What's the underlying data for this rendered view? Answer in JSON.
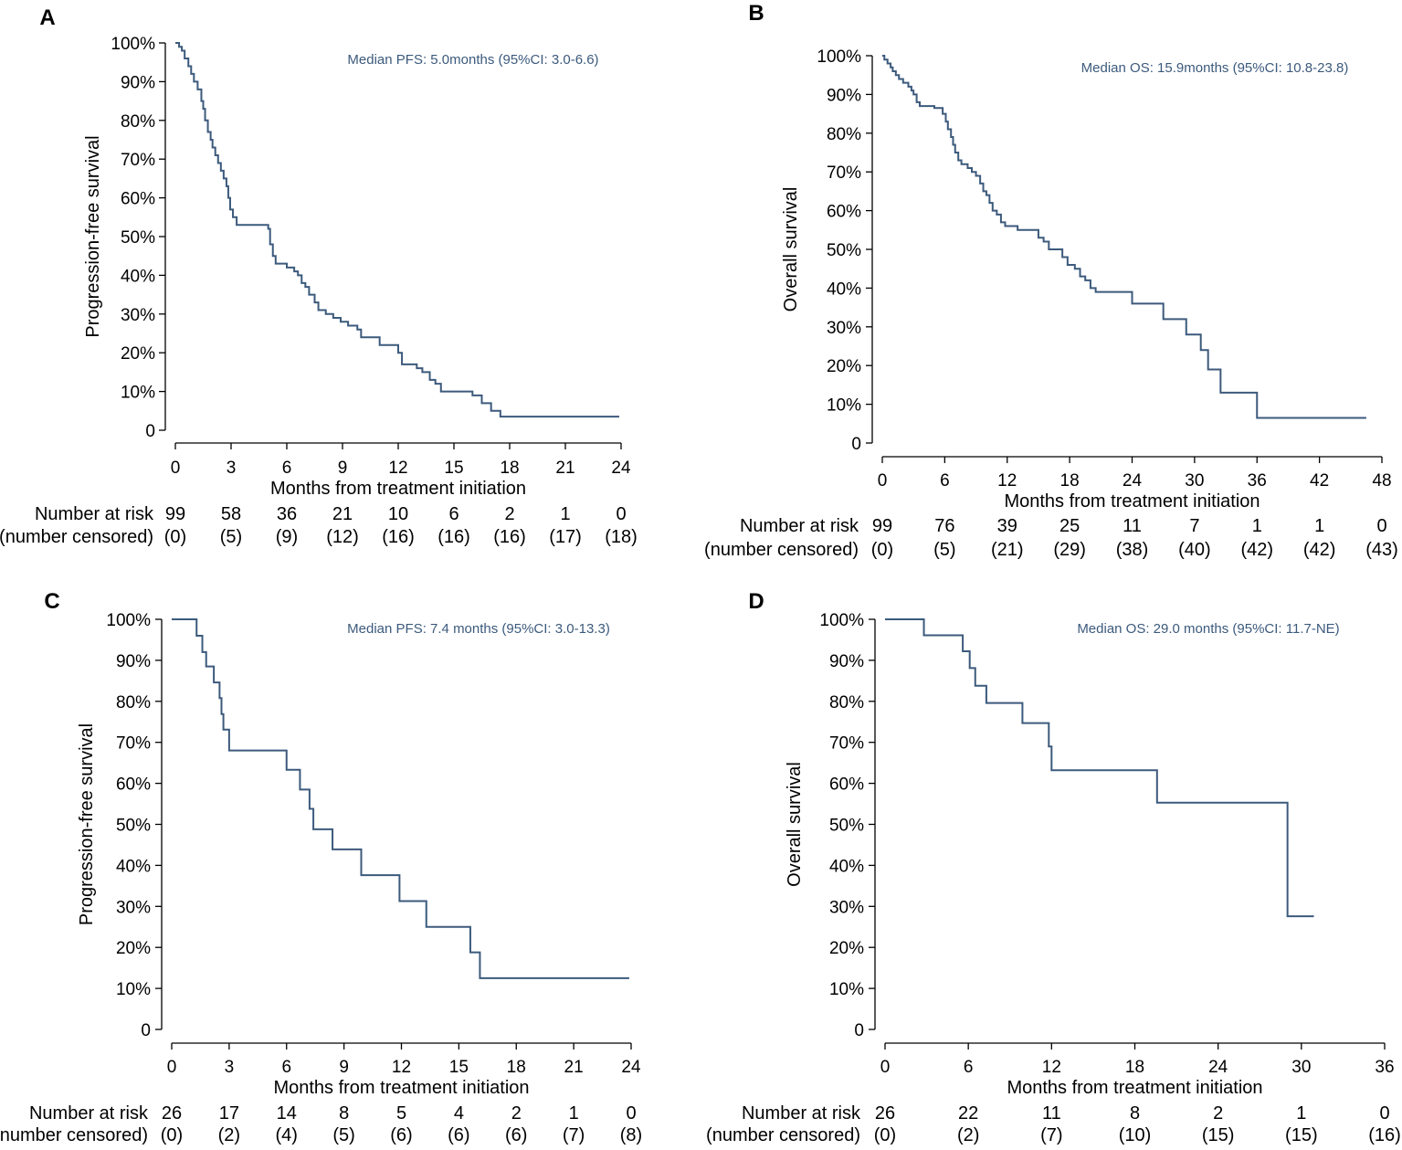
{
  "figure": {
    "colors": {
      "curve": "#3c5a7c",
      "axis": "#000000",
      "annotation": "#3c5a7c",
      "background": "#ffffff"
    },
    "risk_header": "Number at risk",
    "censored_header": "(number censored)"
  },
  "chart_data": [
    {
      "panel": "A",
      "type": "line",
      "title": "",
      "xlabel": "Months from treatment initiation",
      "ylabel": "Progression-free survival",
      "annotation": "Median PFS: 5.0months (95%CI: 3.0-6.6)",
      "xlim": [
        0,
        24
      ],
      "ylim": [
        0,
        100
      ],
      "xticks": [
        0,
        3,
        6,
        9,
        12,
        15,
        18,
        21,
        24
      ],
      "yticks": [
        0,
        10,
        20,
        30,
        40,
        50,
        60,
        70,
        80,
        90,
        100
      ],
      "ytick_labels": [
        "0",
        "10%",
        "20%",
        "30%",
        "40%",
        "50%",
        "60%",
        "70%",
        "80%",
        "90%",
        "100%"
      ],
      "series": [
        {
          "name": "PFS",
          "step_points": [
            [
              0,
              100
            ],
            [
              0.2,
              99
            ],
            [
              0.35,
              98
            ],
            [
              0.5,
              96
            ],
            [
              0.7,
              94
            ],
            [
              0.85,
              92
            ],
            [
              1.0,
              90
            ],
            [
              1.2,
              88
            ],
            [
              1.4,
              85
            ],
            [
              1.5,
              83
            ],
            [
              1.6,
              80
            ],
            [
              1.75,
              77
            ],
            [
              1.9,
              75
            ],
            [
              2.0,
              73
            ],
            [
              2.15,
              71
            ],
            [
              2.3,
              69
            ],
            [
              2.45,
              67
            ],
            [
              2.6,
              65
            ],
            [
              2.75,
              63
            ],
            [
              2.85,
              60
            ],
            [
              2.95,
              57
            ],
            [
              3.1,
              55
            ],
            [
              3.3,
              53
            ],
            [
              5.0,
              52
            ],
            [
              5.1,
              48
            ],
            [
              5.25,
              45
            ],
            [
              5.4,
              43
            ],
            [
              6.0,
              42
            ],
            [
              6.4,
              41
            ],
            [
              6.6,
              40
            ],
            [
              6.8,
              38
            ],
            [
              7.0,
              37
            ],
            [
              7.2,
              35
            ],
            [
              7.5,
              33
            ],
            [
              7.7,
              31
            ],
            [
              8.1,
              30
            ],
            [
              8.5,
              29
            ],
            [
              8.9,
              28
            ],
            [
              9.3,
              27
            ],
            [
              9.8,
              26
            ],
            [
              10.0,
              24
            ],
            [
              11.0,
              22
            ],
            [
              12.0,
              20
            ],
            [
              12.2,
              17
            ],
            [
              13.0,
              16
            ],
            [
              13.3,
              15
            ],
            [
              13.7,
              13
            ],
            [
              14.0,
              12
            ],
            [
              14.3,
              10
            ],
            [
              16.0,
              9
            ],
            [
              16.5,
              7
            ],
            [
              17.0,
              5
            ],
            [
              17.5,
              3.5
            ],
            [
              23.9,
              3.5
            ]
          ]
        }
      ],
      "risk_table": {
        "at_risk": [
          "99",
          "58",
          "36",
          "21",
          "10",
          "6",
          "2",
          "1",
          "0"
        ],
        "censored": [
          "(0)",
          "(5)",
          "(9)",
          "(12)",
          "(16)",
          "(16)",
          "(16)",
          "(17)",
          "(18)"
        ]
      }
    },
    {
      "panel": "B",
      "type": "line",
      "title": "",
      "xlabel": "Months from treatment initiation",
      "ylabel": "Overall survival",
      "annotation": "Median OS: 15.9months (95%CI: 10.8-23.8)",
      "xlim": [
        0,
        48
      ],
      "ylim": [
        0,
        100
      ],
      "xticks": [
        0,
        6,
        12,
        18,
        24,
        30,
        36,
        42,
        48
      ],
      "yticks": [
        0,
        10,
        20,
        30,
        40,
        50,
        60,
        70,
        80,
        90,
        100
      ],
      "ytick_labels": [
        "0",
        "10%",
        "20%",
        "30%",
        "40%",
        "50%",
        "60%",
        "70%",
        "80%",
        "90%",
        "100%"
      ],
      "series": [
        {
          "name": "OS",
          "step_points": [
            [
              0,
              100
            ],
            [
              0.2,
              99
            ],
            [
              0.5,
              98
            ],
            [
              0.8,
              97
            ],
            [
              1.0,
              96
            ],
            [
              1.3,
              95
            ],
            [
              1.6,
              94
            ],
            [
              2.0,
              93
            ],
            [
              2.5,
              92
            ],
            [
              2.8,
              91
            ],
            [
              3.0,
              90
            ],
            [
              3.3,
              88
            ],
            [
              3.6,
              87
            ],
            [
              5.0,
              86.5
            ],
            [
              5.8,
              85
            ],
            [
              6.1,
              83
            ],
            [
              6.3,
              81
            ],
            [
              6.6,
              79
            ],
            [
              6.8,
              77
            ],
            [
              7.0,
              75
            ],
            [
              7.3,
              73
            ],
            [
              7.6,
              72
            ],
            [
              8.2,
              71
            ],
            [
              8.6,
              70
            ],
            [
              9.0,
              69
            ],
            [
              9.4,
              67
            ],
            [
              9.7,
              65
            ],
            [
              10.0,
              64
            ],
            [
              10.3,
              62
            ],
            [
              10.6,
              60
            ],
            [
              11.0,
              59
            ],
            [
              11.4,
              57
            ],
            [
              11.8,
              56
            ],
            [
              13.0,
              55
            ],
            [
              15.0,
              53
            ],
            [
              15.5,
              52
            ],
            [
              16.0,
              50
            ],
            [
              17.3,
              48
            ],
            [
              17.8,
              46
            ],
            [
              18.5,
              45
            ],
            [
              19.0,
              43
            ],
            [
              19.5,
              42
            ],
            [
              20.0,
              40
            ],
            [
              20.5,
              39
            ],
            [
              24.0,
              36
            ],
            [
              27.0,
              32
            ],
            [
              29.2,
              28
            ],
            [
              30.6,
              24
            ],
            [
              31.3,
              19
            ],
            [
              32.5,
              13
            ],
            [
              36.0,
              6.5
            ],
            [
              46.5,
              6.5
            ]
          ]
        }
      ],
      "risk_table": {
        "at_risk": [
          "99",
          "76",
          "39",
          "25",
          "11",
          "7",
          "1",
          "1",
          "0"
        ],
        "censored": [
          "(0)",
          "(5)",
          "(21)",
          "(29)",
          "(38)",
          "(40)",
          "(42)",
          "(42)",
          "(43)"
        ]
      }
    },
    {
      "panel": "C",
      "type": "line",
      "title": "",
      "xlabel": "Months from treatment initiation",
      "ylabel": "Progression-free survival",
      "annotation": "Median PFS: 7.4 months (95%CI: 3.0-13.3)",
      "xlim": [
        0,
        24
      ],
      "ylim": [
        0,
        100
      ],
      "xticks": [
        0,
        3,
        6,
        9,
        12,
        15,
        18,
        21,
        24
      ],
      "yticks": [
        0,
        10,
        20,
        30,
        40,
        50,
        60,
        70,
        80,
        90,
        100
      ],
      "ytick_labels": [
        "0",
        "10%",
        "20%",
        "30%",
        "40%",
        "50%",
        "60%",
        "70%",
        "80%",
        "90%",
        "100%"
      ],
      "series": [
        {
          "name": "PFS",
          "step_points": [
            [
              0,
              100
            ],
            [
              1.3,
              96
            ],
            [
              1.6,
              92
            ],
            [
              1.8,
              88.5
            ],
            [
              2.2,
              84.6
            ],
            [
              2.5,
              80.8
            ],
            [
              2.6,
              76.9
            ],
            [
              2.7,
              73.1
            ],
            [
              3.0,
              68
            ],
            [
              6.0,
              63.3
            ],
            [
              6.7,
              58.5
            ],
            [
              7.2,
              53.8
            ],
            [
              7.4,
              48.8
            ],
            [
              8.4,
              43.9
            ],
            [
              9.9,
              37.6
            ],
            [
              11.9,
              31.3
            ],
            [
              13.3,
              25.0
            ],
            [
              15.6,
              18.8
            ],
            [
              16.1,
              12.5
            ],
            [
              23.9,
              12.5
            ]
          ]
        }
      ],
      "risk_table": {
        "at_risk": [
          "26",
          "17",
          "14",
          "8",
          "5",
          "4",
          "2",
          "1",
          "0"
        ],
        "censored": [
          "(0)",
          "(2)",
          "(4)",
          "(5)",
          "(6)",
          "(6)",
          "(6)",
          "(7)",
          "(8)"
        ]
      }
    },
    {
      "panel": "D",
      "type": "line",
      "title": "",
      "xlabel": "Months from treatment initiation",
      "ylabel": "Overall survival",
      "annotation": "Median OS: 29.0 months (95%CI: 11.7-NE)",
      "xlim": [
        0,
        36
      ],
      "ylim": [
        0,
        100
      ],
      "xticks": [
        0,
        6,
        12,
        18,
        24,
        30,
        36
      ],
      "yticks": [
        0,
        10,
        20,
        30,
        40,
        50,
        60,
        70,
        80,
        90,
        100
      ],
      "ytick_labels": [
        "0",
        "10%",
        "20%",
        "30%",
        "40%",
        "50%",
        "60%",
        "70%",
        "80%",
        "90%",
        "100%"
      ],
      "series": [
        {
          "name": "OS",
          "step_points": [
            [
              0,
              100
            ],
            [
              2.8,
              96.1
            ],
            [
              5.6,
              92.2
            ],
            [
              6.1,
              88.1
            ],
            [
              6.5,
              83.8
            ],
            [
              7.3,
              79.6
            ],
            [
              9.9,
              74.7
            ],
            [
              11.8,
              69.0
            ],
            [
              12.0,
              63.2
            ],
            [
              19.6,
              55.3
            ],
            [
              29.0,
              27.6
            ],
            [
              30.9,
              27.6
            ]
          ]
        }
      ],
      "risk_table": {
        "at_risk": [
          "26",
          "22",
          "11",
          "8",
          "2",
          "1",
          "0"
        ],
        "censored": [
          "(0)",
          "(2)",
          "(7)",
          "(10)",
          "(15)",
          "(15)",
          "(16)"
        ]
      }
    }
  ]
}
